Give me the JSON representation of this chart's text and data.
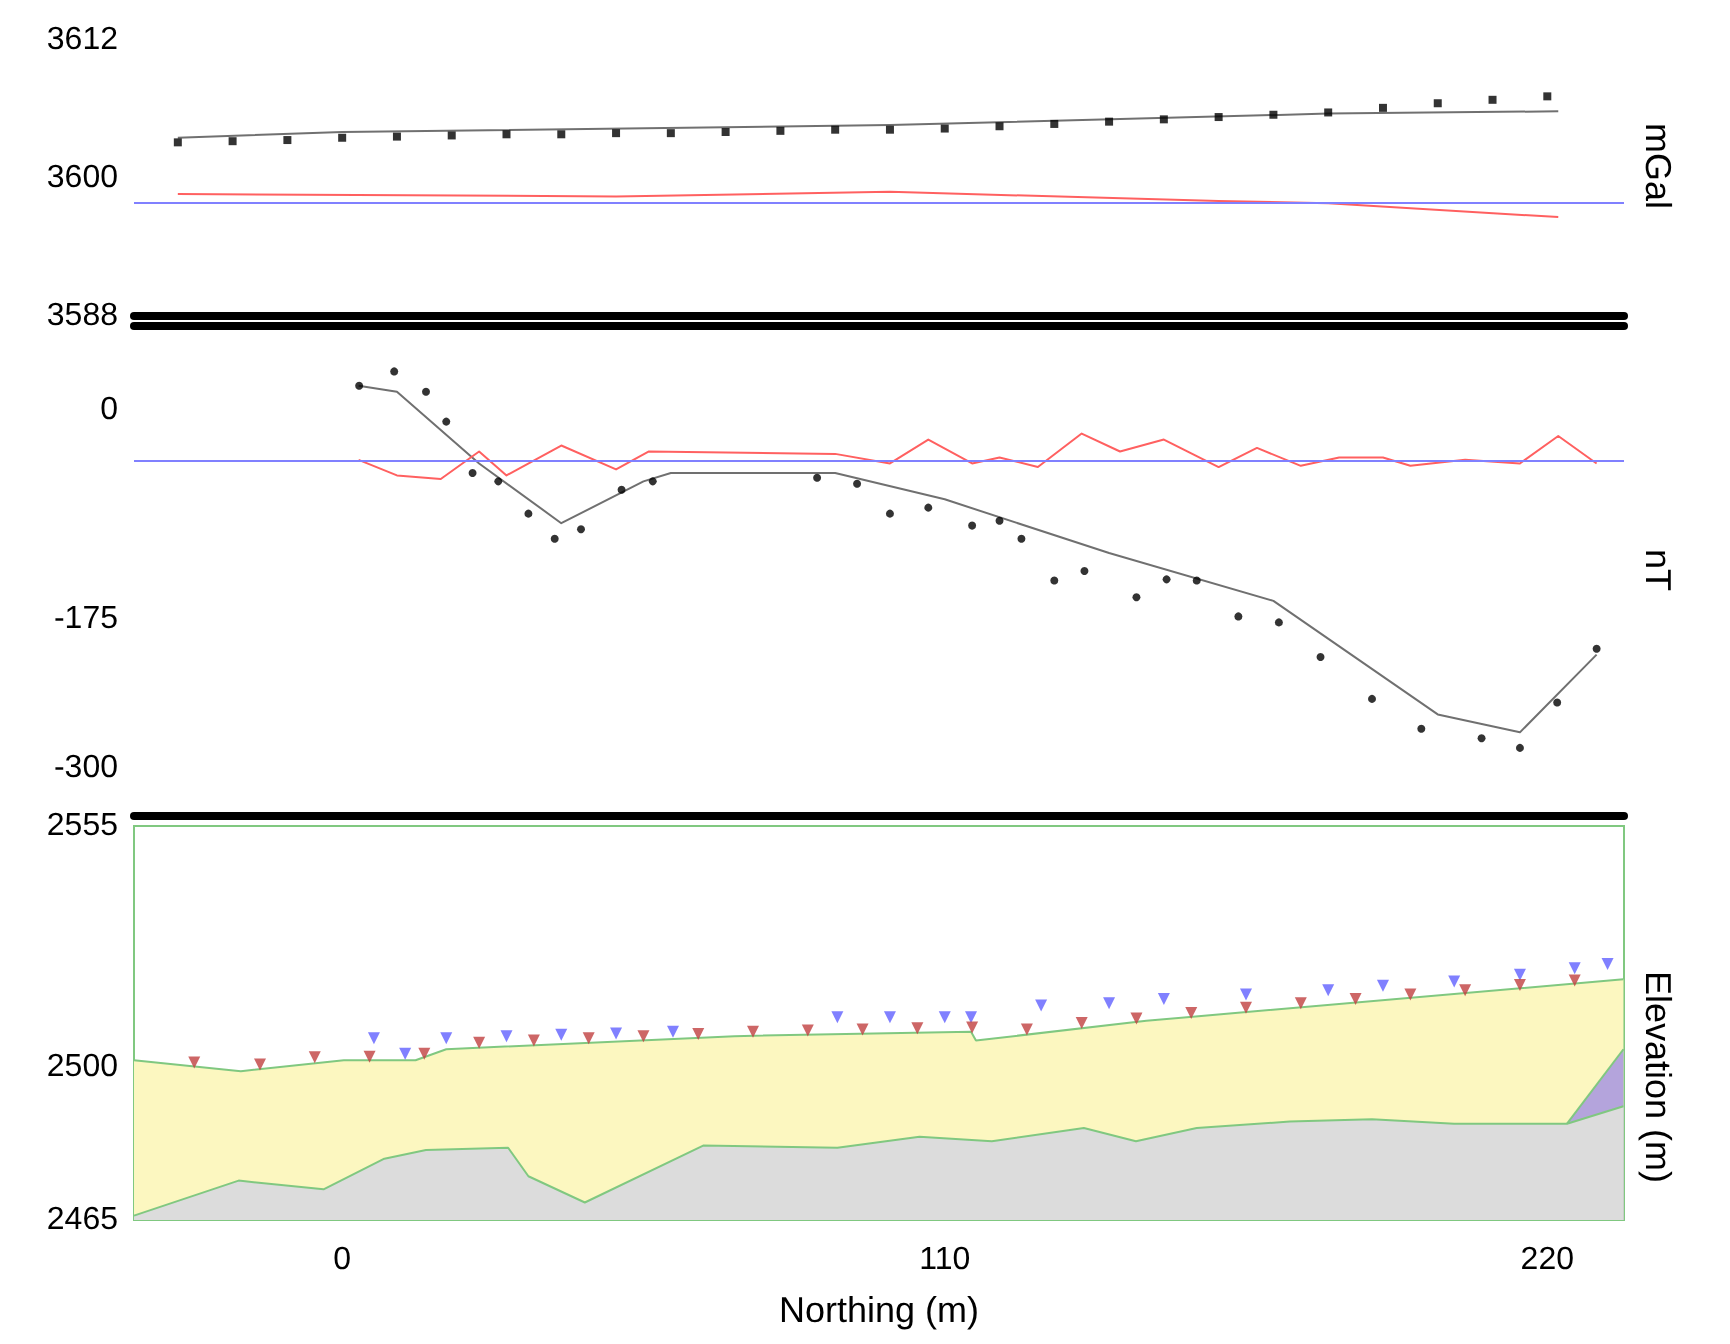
{
  "chart_data": [
    {
      "type": "line",
      "ylabel": "mGal",
      "xlim": [
        -38,
        234
      ],
      "xticks": [
        0,
        110,
        220
      ],
      "ylim": [
        3588,
        3612
      ],
      "yticks": [
        3588,
        3600,
        3612
      ],
      "tick_labels": "y",
      "series": [
        {
          "type": "scatter",
          "marker": "square",
          "color": "#000000",
          "x": [
            -30,
            -20,
            -10,
            0,
            10,
            20,
            30,
            40,
            50,
            60,
            70,
            80,
            90,
            100,
            110,
            120,
            130,
            140,
            150,
            160,
            170,
            180,
            190,
            200,
            210,
            220
          ],
          "values": [
            3603.1,
            3603.2,
            3603.3,
            3603.5,
            3603.6,
            3603.7,
            3603.8,
            3603.8,
            3603.9,
            3603.9,
            3604.0,
            3604.1,
            3604.2,
            3604.2,
            3604.3,
            3604.5,
            3604.7,
            3604.9,
            3605.1,
            3605.3,
            3605.5,
            3605.7,
            3606.1,
            3606.5,
            3606.8,
            3607.1
          ]
        },
        {
          "type": "line",
          "marker": "none",
          "color": "#707070",
          "x": [
            -30,
            0,
            100,
            180,
            222
          ],
          "values": [
            3603.5,
            3604.0,
            3604.6,
            3605.6,
            3605.8
          ]
        },
        {
          "type": "line",
          "marker": "none",
          "color": "#ff6060",
          "x": [
            -30,
            50,
            100,
            160,
            180,
            222
          ],
          "values": [
            3598.6,
            3598.4,
            3598.8,
            3598.0,
            3597.8,
            3596.6
          ]
        }
      ],
      "ref_lines": [
        {
          "axis": "y",
          "value": 3597.8,
          "color": "#8080ff"
        }
      ]
    },
    {
      "type": "line",
      "ylabel": "nT",
      "xlim": [
        -38,
        234
      ],
      "xticks": [
        0,
        110,
        220
      ],
      "ylim": [
        -340,
        70
      ],
      "yticks": [
        -300,
        -175,
        0
      ],
      "tick_labels": "y",
      "series": [
        {
          "type": "scatter",
          "marker": "circle",
          "color": "#000000",
          "x": [
            3.1,
            9.5,
            15.3,
            19,
            23.8,
            28.5,
            34,
            38.8,
            43.6,
            51,
            56.7,
            86.7,
            94,
            100,
            107,
            115,
            120,
            124,
            130,
            135.5,
            145,
            150.5,
            156,
            163.6,
            171,
            178.6,
            188,
            197,
            208,
            215,
            221.8,
            229
          ],
          "values": [
            20,
            32,
            15,
            -10,
            -53,
            -60,
            -87,
            -108,
            -100,
            -67,
            -60,
            -57,
            -62,
            -87,
            -82,
            -97,
            -93,
            -108,
            -143,
            -135,
            -157,
            -142,
            -143,
            -173,
            -178,
            -207,
            -242,
            -267,
            -275,
            -283,
            -245,
            -200
          ]
        },
        {
          "type": "line",
          "marker": "none",
          "color": "#707070",
          "x": [
            3,
            10,
            25,
            40,
            55,
            60,
            90,
            110,
            140,
            170,
            200,
            215,
            229
          ],
          "values": [
            20,
            15,
            -45,
            -95,
            -60,
            -53,
            -53,
            -75,
            -120,
            -160,
            -255,
            -270,
            -205
          ]
        },
        {
          "type": "line",
          "marker": "none",
          "color": "#ff6060",
          "x": [
            3,
            10,
            18,
            25,
            30,
            40,
            50,
            56,
            90,
            100,
            107,
            115,
            120,
            127,
            135,
            142,
            150,
            160,
            167,
            175,
            182,
            190,
            195,
            205,
            215,
            222,
            229
          ],
          "values": [
            -42,
            -55,
            -58,
            -35,
            -55,
            -30,
            -50,
            -35,
            -37,
            -45,
            -25,
            -45,
            -40,
            -48,
            -20,
            -35,
            -25,
            -48,
            -32,
            -47,
            -40,
            -40,
            -47,
            -42,
            -45,
            -22,
            -45
          ]
        }
      ],
      "ref_lines": [
        {
          "axis": "y",
          "value": -42,
          "color": "#8080ff"
        }
      ]
    },
    {
      "type": "area",
      "xlabel": "Northing (m)",
      "ylabel": "Elevation (m)",
      "xlim": [
        -38,
        234
      ],
      "xticks": [
        0,
        110,
        220
      ],
      "ylim": [
        2465,
        2555
      ],
      "yticks": [
        2465,
        2500,
        2555
      ],
      "series": [
        {
          "type": "area",
          "marker": "none",
          "color": "#fcf7c0",
          "x": [
            -38,
            -18.5,
            0.3,
            13.4,
            19,
            71.6,
            114.8,
            115.7,
            146.8,
            233.9
          ],
          "values": [
            2501.5,
            2499,
            2501.5,
            2501.5,
            2504,
            2507,
            2508,
            2506,
            2510.5,
            2520
          ]
        },
        {
          "type": "area",
          "marker": "none",
          "color": "#b4a4dc",
          "x": [
            223.6,
            233.9
          ],
          "values": [
            2487,
            2504
          ]
        },
        {
          "type": "area",
          "marker": "none",
          "color": "#dcdcdc",
          "x": [
            -38,
            -18.9,
            -3.4,
            7.7,
            15.3,
            30.3,
            34,
            44.3,
            65.9,
            90.4,
            105.4,
            118.6,
            135.4,
            144.9,
            156,
            173,
            188,
            203,
            223.6,
            233.9
          ],
          "values": [
            2466,
            2474,
            2472,
            2479,
            2481,
            2481.5,
            2475,
            2469,
            2482,
            2481.5,
            2484,
            2483,
            2486,
            2483,
            2486,
            2487.5,
            2488,
            2487,
            2487,
            2491
          ]
        },
        {
          "type": "scatter",
          "marker": "triangle",
          "color": "#6060ff",
          "x": [
            5.8,
            11.5,
            19,
            30,
            40,
            50,
            60.4,
            90.4,
            100,
            110,
            114.8,
            127.6,
            140,
            150,
            165,
            180,
            190,
            203,
            215,
            225,
            231
          ],
          "values": [
            2506.5,
            2503,
            2506.5,
            2507,
            2507.3,
            2507.6,
            2508,
            2511.3,
            2511.3,
            2511.3,
            2511.3,
            2514,
            2514.5,
            2515.5,
            2516.5,
            2517.5,
            2518.5,
            2519.5,
            2521,
            2522.5,
            2523.5
          ]
        },
        {
          "type": "scatter",
          "marker": "triangle",
          "color": "#c04040",
          "x": [
            -27,
            -15,
            -5,
            5,
            15,
            25,
            35,
            45,
            55,
            65,
            75,
            85,
            95,
            105,
            115,
            125,
            135,
            145,
            155,
            165,
            175,
            185,
            195,
            205,
            215,
            225
          ],
          "values": [
            2501,
            2500.5,
            2502.2,
            2502.3,
            2503,
            2505.5,
            2506,
            2506.5,
            2507,
            2507.5,
            2508,
            2508.3,
            2508.5,
            2508.8,
            2509,
            2508.5,
            2510,
            2511,
            2512.3,
            2513.5,
            2514.5,
            2515.5,
            2516.5,
            2517.5,
            2518.7,
            2519.7
          ]
        }
      ]
    }
  ]
}
